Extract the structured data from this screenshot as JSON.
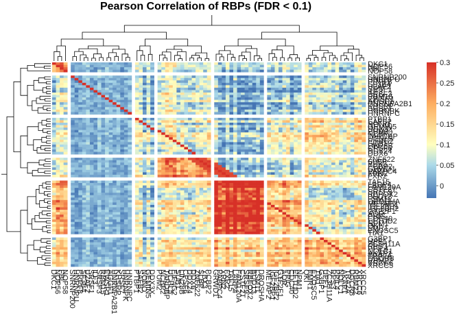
{
  "chart_data": {
    "type": "heatmap",
    "title": "Pearson Correlation of RBPs (FDR < 0.1)",
    "row_labels": [
      "DKC1",
      "NOP56",
      "FBL",
      "NOP58",
      "SNRNP200",
      "HNRNPU",
      "PRPF8",
      "SF3B4",
      "U2AF2",
      "SRSF1",
      "ILF3",
      "SRSF3",
      "RBM15",
      "EWSR1",
      "AGGF1",
      "HNRNPA2B1",
      "KHSRP",
      "SRSF7",
      "HNRNPK",
      "HNRNPC",
      "PTBP1",
      "SAFB2",
      "NONO",
      "GEMIN5",
      "DDX3X",
      "PUM2",
      "NCBP2",
      "TARDBP",
      "UCHL5",
      "EIF4G2",
      "SUB1",
      "LIN28B",
      "CPSF6",
      "DDX24",
      "DDX6",
      "ZNF622",
      "SLBP",
      "YBX3",
      "PCBP2",
      "GRWD1",
      "PABPC4",
      "XRN2",
      "FXR2",
      "TAF15",
      "LARP4",
      "FAM120A",
      "CSTF2T",
      "SRSF9",
      "RBFOX2",
      "BUD13",
      "LSM11",
      "DROSHA",
      "METAP2",
      "IGF2BP1",
      "IGF2BP2",
      "GTF2F1",
      "AQR",
      "PPIG",
      "CDC40",
      "EFTUD2",
      "NPM1",
      "QKI",
      "FMR1",
      "EXOSC5",
      "TIA1",
      "G3BP1",
      "UPF1",
      "ZC3H11A",
      "RPS3",
      "PPIL4",
      "NOLC1",
      "AKAP1",
      "TRA2A",
      "DGCR8",
      "RBM22",
      "XRCC6",
      "XRCC5"
    ],
    "col_labels": [
      "DKC1",
      "NOP56",
      "FBL",
      "NOP58",
      "SNRNP200",
      "HNRNPU",
      "PRPF8",
      "SF3B4",
      "U2AF2",
      "SRSF1",
      "ILF3",
      "SRSF3",
      "RBM15",
      "EWSR1",
      "AGGF1",
      "HNRNPA2B1",
      "KHSRP",
      "SRSF7",
      "HNRNPK",
      "HNRNPC",
      "PTBP1",
      "SAFB2",
      "NONO",
      "GEMIN5",
      "DDX3X",
      "PUM2",
      "NCBP2",
      "TARDBP",
      "UCHL5",
      "EIF4G2",
      "SUB1",
      "LIN28B",
      "CPSF6",
      "DDX24",
      "DDX6",
      "ZNF622",
      "SLBP",
      "YBX3",
      "PCBP2",
      "GRWD1",
      "PABPC4",
      "XRN2",
      "FXR2",
      "TAF15",
      "LARP4",
      "FAM120A",
      "CSTF2T",
      "SRSF9",
      "RBFOX2",
      "BUD13",
      "LSM11",
      "DROSHA",
      "METAP2",
      "IGF2BP1",
      "IGF2BP2",
      "GTF2F1",
      "AQR",
      "PPIG",
      "CDC40",
      "EFTUD2",
      "NPM1",
      "QKI",
      "FMR1",
      "EXOSC5",
      "TIA1",
      "G3BP1",
      "UPF1",
      "ZC3H11A",
      "RPS3",
      "PPIL4",
      "NOLC1",
      "AKAP1",
      "TRA2A",
      "DGCR8",
      "RBM22",
      "XRCC6",
      "XRCC5"
    ],
    "row_clusters": [
      4,
      16,
      15,
      8,
      22,
      12
    ],
    "col_clusters": [
      4,
      16,
      5,
      14,
      13,
      9,
      16
    ],
    "color_scale": {
      "min": -0.03,
      "max": 0.3,
      "stops": [
        {
          "value": -0.03,
          "color": "#4575b4"
        },
        {
          "value": 0.05,
          "color": "#abd9e9"
        },
        {
          "value": 0.1,
          "color": "#ffffbf"
        },
        {
          "value": 0.2,
          "color": "#fdae61"
        },
        {
          "value": 0.3,
          "color": "#d73027"
        }
      ]
    },
    "legend_ticks": [
      "0.3",
      "0.25",
      "0.2",
      "0.15",
      "0.1",
      "0.05",
      "0"
    ],
    "legend_tick_values": [
      0.3,
      0.25,
      0.2,
      0.15,
      0.1,
      0.05,
      0
    ]
  }
}
